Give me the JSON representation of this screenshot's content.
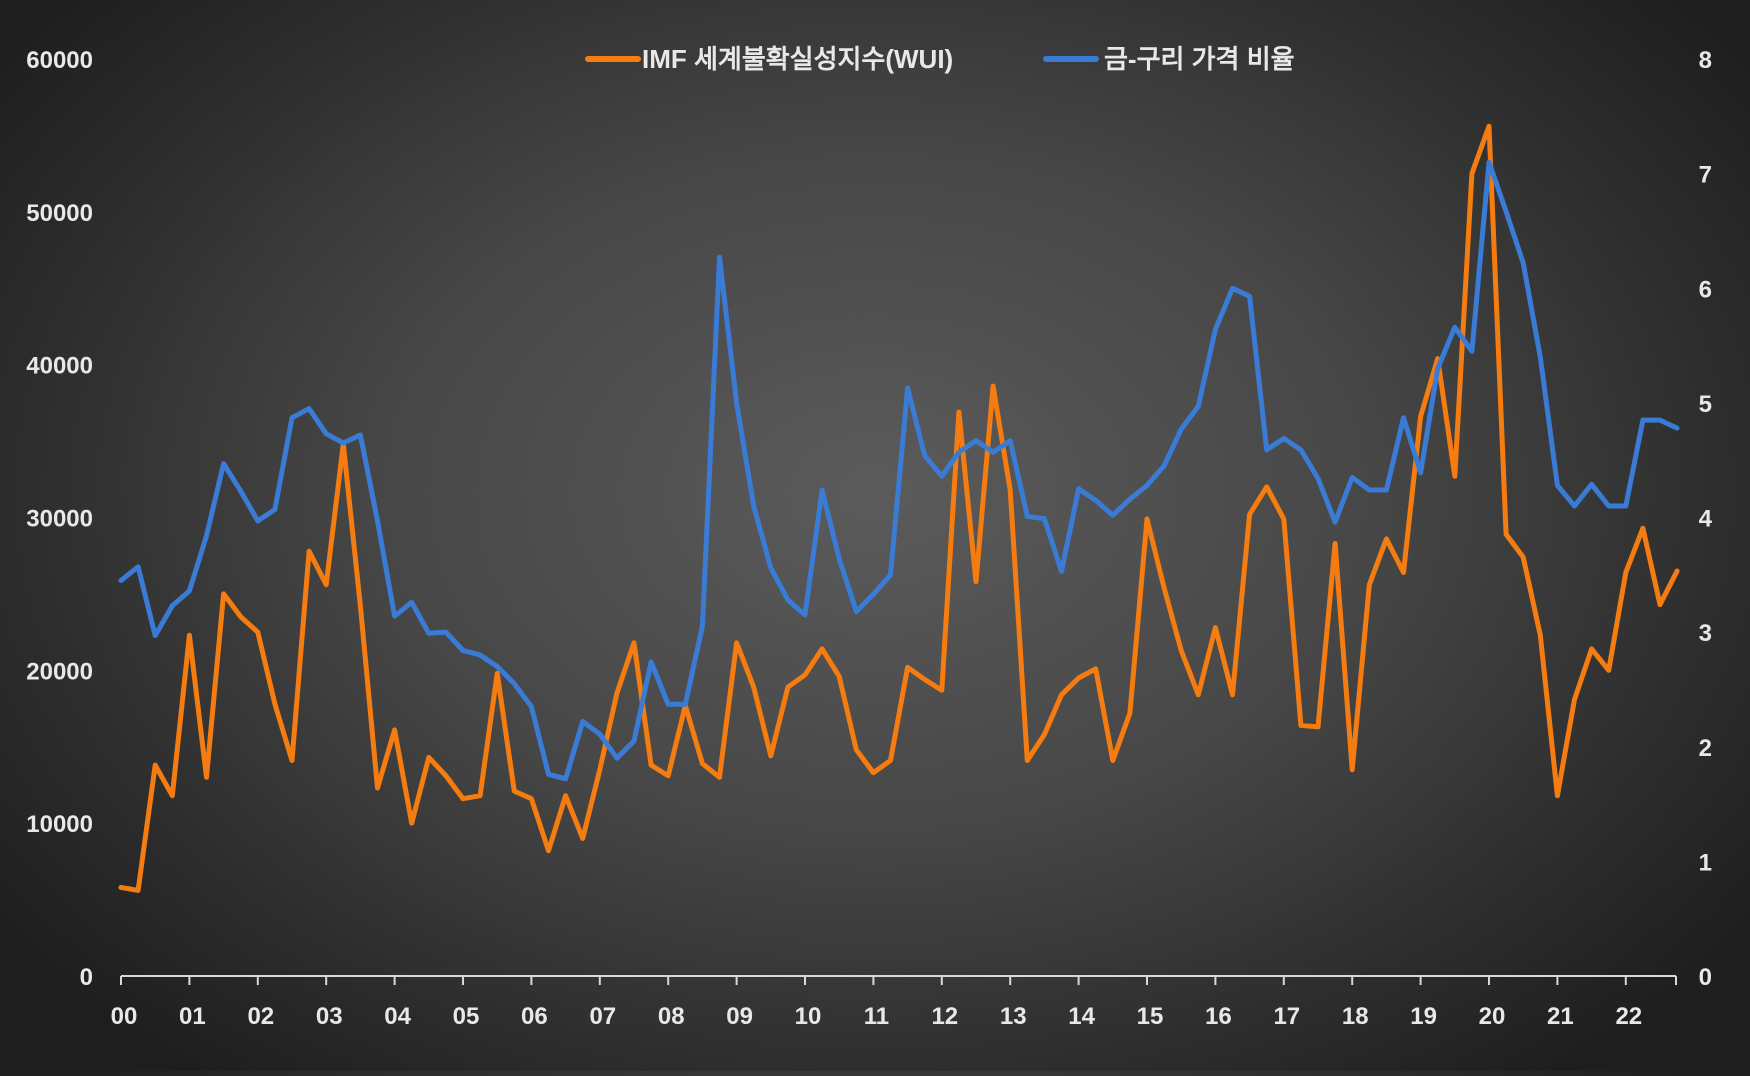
{
  "chart_data": {
    "type": "line",
    "title": "",
    "legend_position": "top-center",
    "grid": false,
    "x_tick_labels": [
      "00",
      "01",
      "02",
      "03",
      "04",
      "05",
      "06",
      "07",
      "08",
      "09",
      "10",
      "11",
      "12",
      "13",
      "14",
      "15",
      "16",
      "17",
      "18",
      "19",
      "20",
      "21",
      "22"
    ],
    "x_range": [
      0,
      23
    ],
    "y_left": {
      "ticks": [
        0,
        10000,
        20000,
        30000,
        40000,
        50000,
        60000
      ],
      "range": [
        0,
        60000
      ]
    },
    "y_right": {
      "ticks": [
        0,
        1,
        2,
        3,
        4,
        5,
        6,
        7,
        8
      ],
      "range": [
        0,
        8
      ]
    },
    "series": [
      {
        "name": "IMF 세계불확실성지수(WUI)",
        "axis": "left",
        "color": "#f47c10",
        "x_start": 0,
        "x_step": 0.25,
        "values": [
          5800,
          5600,
          13800,
          11800,
          22300,
          13000,
          25000,
          23500,
          22500,
          17800,
          14100,
          27800,
          25600,
          34800,
          24200,
          12300,
          16100,
          10000,
          14300,
          13100,
          11600,
          11800,
          19800,
          12100,
          11600,
          8200,
          11800,
          9000,
          13500,
          18500,
          21800,
          13800,
          13100,
          17700,
          13900,
          13000,
          21800,
          18900,
          14400,
          18900,
          19700,
          21400,
          19600,
          14800,
          13300,
          14100,
          20200,
          19400,
          18700,
          36900,
          25800,
          38600,
          31800,
          14100,
          15800,
          18400,
          19500,
          20100,
          14100,
          17200,
          29900,
          25400,
          21300,
          18400,
          22800,
          18400,
          30200,
          32000,
          29900,
          16400,
          16300,
          28300,
          13500,
          25600,
          28600,
          26400,
          36600,
          40400,
          32700,
          52500,
          55600,
          28900,
          27400,
          22300,
          11800,
          18100,
          21400,
          20000,
          26400,
          29300,
          24300,
          26500
        ]
      },
      {
        "name": "금-구리 가격 비율",
        "axis": "right",
        "color": "#3a7cd5",
        "x_start": 0,
        "x_step": 0.25,
        "values": [
          3.45,
          3.57,
          2.97,
          3.23,
          3.36,
          3.84,
          4.47,
          4.23,
          3.97,
          4.07,
          4.87,
          4.95,
          4.73,
          4.65,
          4.72,
          3.97,
          3.14,
          3.26,
          2.99,
          3.0,
          2.84,
          2.8,
          2.7,
          2.55,
          2.35,
          1.76,
          1.72,
          2.22,
          2.11,
          1.9,
          2.05,
          2.74,
          2.37,
          2.37,
          3.05,
          6.27,
          5.0,
          4.1,
          3.56,
          3.28,
          3.15,
          4.24,
          3.64,
          3.18,
          3.33,
          3.5,
          5.13,
          4.54,
          4.36,
          4.57,
          4.67,
          4.57,
          4.67,
          4.01,
          3.99,
          3.53,
          4.25,
          4.15,
          4.02,
          4.16,
          4.28,
          4.45,
          4.77,
          4.97,
          5.64,
          6.0,
          5.93,
          4.59,
          4.69,
          4.59,
          4.34,
          3.96,
          4.35,
          4.24,
          4.24,
          4.87,
          4.39,
          5.3,
          5.66,
          5.45,
          7.1,
          6.67,
          6.22,
          5.4,
          4.28,
          4.1,
          4.29,
          4.1,
          4.1,
          4.85,
          4.85,
          4.78
        ]
      }
    ]
  }
}
